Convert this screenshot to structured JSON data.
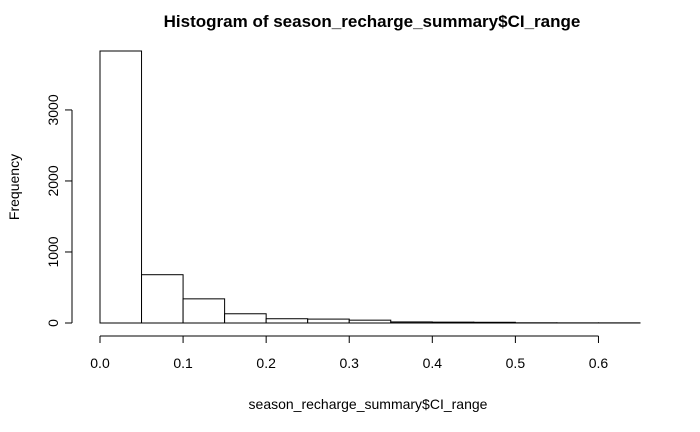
{
  "chart_data": {
    "type": "bar",
    "subtype": "histogram",
    "title": "Histogram of season_recharge_summary$CI_range",
    "xlabel": "season_recharge_summary$CI_range",
    "ylabel": "Frequency",
    "bins": [
      {
        "start": 0.0,
        "end": 0.05,
        "count": 3830
      },
      {
        "start": 0.05,
        "end": 0.1,
        "count": 680
      },
      {
        "start": 0.1,
        "end": 0.15,
        "count": 340
      },
      {
        "start": 0.15,
        "end": 0.2,
        "count": 130
      },
      {
        "start": 0.2,
        "end": 0.25,
        "count": 60
      },
      {
        "start": 0.25,
        "end": 0.3,
        "count": 55
      },
      {
        "start": 0.3,
        "end": 0.35,
        "count": 40
      },
      {
        "start": 0.35,
        "end": 0.4,
        "count": 15
      },
      {
        "start": 0.4,
        "end": 0.45,
        "count": 12
      },
      {
        "start": 0.45,
        "end": 0.5,
        "count": 10
      },
      {
        "start": 0.5,
        "end": 0.55,
        "count": 3
      },
      {
        "start": 0.55,
        "end": 0.6,
        "count": 2
      },
      {
        "start": 0.6,
        "end": 0.65,
        "count": 2
      }
    ],
    "xlim": [
      0.0,
      0.65
    ],
    "ylim": [
      0,
      3830
    ],
    "x_ticks": [
      0.0,
      0.1,
      0.2,
      0.3,
      0.4,
      0.5,
      0.6
    ],
    "x_tick_labels": [
      "0.0",
      "0.1",
      "0.2",
      "0.3",
      "0.4",
      "0.5",
      "0.6"
    ],
    "y_ticks": [
      0,
      1000,
      2000,
      3000
    ],
    "y_tick_labels": [
      "0",
      "1000",
      "2000",
      "3000"
    ],
    "grid": false,
    "legend": "none",
    "colors": {
      "bar_fill": "#ffffff",
      "bar_stroke": "#000000"
    }
  }
}
